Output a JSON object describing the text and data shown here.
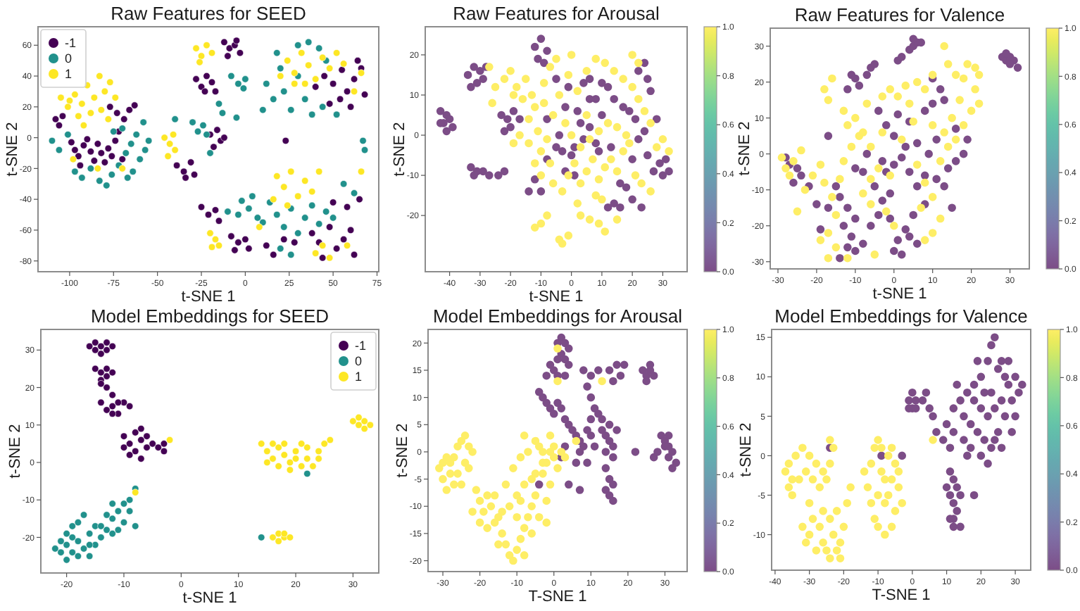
{
  "chart_data": [
    {
      "type": "scatter",
      "title": "Raw Features for SEED",
      "xlabel": "t-SNE 1",
      "ylabel": "t-SNE 2",
      "xlim": [
        -118,
        76
      ],
      "ylim": [
        -87,
        72
      ],
      "xticks": [
        -100,
        -75,
        -50,
        -25,
        0,
        25,
        50,
        75
      ],
      "yticks": [
        -80,
        -60,
        -40,
        -20,
        0,
        20,
        40,
        60
      ],
      "legend": "top left",
      "marker": "circle",
      "series": [
        {
          "name": "-1",
          "color": "#440154",
          "x": [
            -108,
            -106,
            -104,
            -99,
            -97,
            -95,
            -92,
            -90,
            -88,
            -86,
            -84,
            -82,
            -80,
            -78,
            -76,
            -74,
            -72,
            -70,
            -77,
            -73,
            -69,
            -66,
            -63,
            -94,
            -12,
            -9,
            -6,
            -3,
            -10,
            -5,
            -28,
            -25,
            -22,
            -19,
            -17,
            -23,
            -20,
            -16,
            -14,
            -18,
            -12,
            -39,
            -35,
            -31,
            -29,
            -34,
            -25,
            -21,
            -17,
            -15,
            -8,
            -4,
            0,
            2,
            -6,
            45,
            50,
            55,
            58,
            62,
            66,
            68,
            48,
            54,
            60,
            40,
            64,
            38,
            42,
            48,
            52,
            56,
            60,
            62,
            44,
            12,
            16,
            22,
            58,
            65,
            50,
            28,
            23
          ],
          "values": [
            12,
            8,
            14,
            -3,
            -8,
            -12,
            -5,
            -1,
            -9,
            -15,
            -4,
            -10,
            -16,
            -7,
            -12,
            -2,
            4,
            -14,
            20,
            16,
            12,
            18,
            21,
            -18,
            62,
            58,
            60,
            55,
            53,
            63,
            38,
            33,
            40,
            36,
            30,
            30,
            2,
            5,
            -2,
            -6,
            0,
            -18,
            -22,
            -16,
            -24,
            -26,
            -45,
            -50,
            -47,
            -54,
            -64,
            -68,
            -66,
            -72,
            -73,
            40,
            35,
            44,
            30,
            38,
            45,
            28,
            22,
            25,
            20,
            33,
            50,
            -62,
            -68,
            -58,
            -72,
            -66,
            -60,
            -76,
            -78,
            -70,
            -76,
            -66,
            -45,
            -40,
            -42,
            -68,
            -2
          ]
        },
        {
          "name": "0",
          "color": "#21918c",
          "x": [
            -110,
            -106,
            -101,
            -97,
            -93,
            -88,
            -83,
            -79,
            -76,
            -72,
            -68,
            -65,
            -62,
            -60,
            -57,
            -55,
            -64,
            -70,
            -67,
            -58,
            -75,
            -30,
            -27,
            -24,
            -22,
            -15,
            -13,
            -5,
            -8,
            -4,
            0,
            -1,
            -40,
            -20,
            -10,
            -4,
            2,
            7,
            -2,
            4,
            12,
            16,
            20,
            22,
            26,
            30,
            34,
            38,
            30,
            36,
            42,
            46,
            44,
            18,
            52,
            10,
            14,
            18,
            22,
            26,
            30,
            34,
            38,
            42,
            46,
            20,
            26,
            56,
            62,
            50,
            10,
            67,
            68
          ],
          "values": [
            -2,
            -8,
            2,
            -22,
            -26,
            -20,
            -28,
            -31,
            -24,
            -18,
            -10,
            -4,
            2,
            -14,
            -8,
            -2,
            -22,
            6,
            -26,
            10,
            4,
            10,
            4,
            8,
            2,
            22,
            16,
            13,
            40,
            35,
            38,
            32,
            12,
            -10,
            -48,
            -50,
            -46,
            -52,
            -41,
            -38,
            35,
            25,
            45,
            30,
            18,
            40,
            25,
            15,
            60,
            62,
            58,
            50,
            20,
            55,
            15,
            18,
            -42,
            -50,
            -58,
            -46,
            -62,
            -52,
            -44,
            -56,
            -48,
            -72,
            -76,
            -30,
            -36,
            -52,
            -55,
            -2,
            -8
          ]
        },
        {
          "name": "1",
          "color": "#fde725",
          "x": [
            -105,
            -100,
            -97,
            -93,
            -90,
            -86,
            -83,
            -80,
            -77,
            -74,
            -88,
            -95,
            -82,
            -101,
            -78,
            -92,
            -84,
            -70,
            -98,
            -28,
            -25,
            -22,
            -19,
            -26,
            -46,
            -43,
            -40,
            -44,
            -41,
            -20,
            -17,
            -15,
            -19,
            24,
            28,
            32,
            36,
            40,
            44,
            48,
            52,
            28,
            56,
            34,
            62,
            66,
            20,
            18,
            22,
            26,
            30,
            34,
            38,
            42,
            16,
            24,
            44,
            48,
            40,
            66,
            8,
            58
          ],
          "values": [
            26,
            24,
            28,
            22,
            34,
            26,
            40,
            30,
            36,
            26,
            16,
            14,
            18,
            20,
            12,
            8,
            -20,
            -20,
            -14,
            58,
            53,
            60,
            55,
            49,
            0,
            -4,
            -8,
            -12,
            2,
            -62,
            -66,
            -70,
            -71,
            50,
            42,
            55,
            47,
            38,
            52,
            45,
            55,
            35,
            48,
            35,
            30,
            42,
            40,
            -25,
            -32,
            -22,
            -38,
            -28,
            -35,
            -22,
            -40,
            -44,
            -70,
            -78,
            -75,
            -22,
            -58,
            -70
          ]
        }
      ]
    },
    {
      "type": "scatter",
      "title": "Raw Features for Arousal",
      "xlabel": "t-SNE 1",
      "ylabel": "t-SNE 2",
      "xlim": [
        -48,
        38
      ],
      "ylim": [
        -34,
        27
      ],
      "xticks": [
        -40,
        -30,
        -20,
        -10,
        0,
        10,
        20,
        30
      ],
      "yticks": [
        -20,
        -10,
        0,
        10,
        20
      ],
      "clim": [
        0,
        1
      ],
      "cticks": [
        {
          "value": 0,
          "label": "0.0"
        },
        {
          "value": 0.2,
          "label": "0.2"
        },
        {
          "value": 0.4,
          "label": "0.4"
        },
        {
          "value": 0.6,
          "label": "0.6"
        },
        {
          "value": 0.8,
          "label": "0.8"
        },
        {
          "value": 1,
          "label": "1.0"
        }
      ],
      "marker": "circle",
      "x": [
        -43,
        -41,
        -42,
        -40,
        -39,
        -41,
        -43,
        -34,
        -32,
        -30,
        -31,
        -33,
        -29,
        -28,
        -33,
        -31,
        -29,
        -27,
        -24,
        -22,
        -32,
        -23,
        -21,
        -19,
        -17,
        -20,
        -22,
        -12,
        -10,
        -8,
        -11,
        -9,
        -5,
        -2,
        2,
        4,
        6,
        0,
        -5,
        -8,
        -12,
        -14,
        -10,
        -4,
        3,
        8,
        10,
        12,
        14,
        6,
        -1,
        1,
        10,
        13,
        16,
        18,
        14,
        12,
        16,
        20,
        19,
        21,
        24,
        22,
        25,
        27,
        29,
        31,
        32,
        30,
        24,
        22,
        25,
        26,
        28,
        20,
        8,
        -2,
        17,
        4,
        6,
        -8,
        9,
        -3,
        1,
        23,
        -27,
        -25,
        -26,
        -22,
        -19,
        -18,
        -16,
        -20,
        -15,
        -13,
        -12,
        -17,
        -19,
        -14,
        -10,
        -7,
        -12,
        -10,
        -6,
        -3,
        -1,
        1,
        3,
        5,
        7,
        9,
        11,
        13,
        15,
        17,
        19,
        21,
        23,
        26,
        28,
        30,
        32,
        26,
        24,
        22,
        20,
        17,
        14,
        11,
        8,
        5,
        2,
        -1,
        -4,
        -6,
        -9,
        -2,
        0,
        3,
        6,
        9,
        12,
        15,
        18,
        5,
        -8,
        -14,
        -11,
        0,
        8,
        10,
        2,
        6,
        9,
        11,
        -10,
        -12,
        -8,
        -3,
        -1,
        -4,
        3,
        15,
        20,
        22,
        -7,
        -9,
        -5
      ],
      "values": [
        6,
        5,
        3,
        4,
        2,
        1,
        3,
        15,
        17,
        16,
        13,
        12,
        14,
        17,
        -8,
        -9,
        -9,
        -10,
        -10,
        -9,
        -10,
        5,
        4,
        6,
        4,
        2,
        1,
        22,
        24,
        21,
        19,
        18,
        14,
        7,
        6,
        -1,
        2,
        -5,
        -3,
        -6,
        -11,
        -14,
        -14,
        0,
        3,
        9,
        13,
        12,
        9,
        14,
        12,
        -3,
        5,
        -3,
        -12,
        -13,
        -17,
        -18,
        -18,
        -16,
        6,
        4,
        1,
        -1,
        -5,
        -9,
        -7,
        -6,
        -9,
        -10,
        18,
        16,
        14,
        11,
        4,
        -6,
        -2,
        -9,
        7,
        13,
        9,
        4,
        -4,
        -4,
        -10,
        -18,
        17,
        12,
        8,
        14,
        10,
        12,
        9,
        16,
        14,
        10,
        7,
        0,
        -2,
        -2,
        -4,
        -7,
        -7,
        -10,
        -12,
        -14,
        -10,
        -7,
        -12,
        -9,
        -6,
        -11,
        -8,
        -6,
        -9,
        -4,
        -2,
        -10,
        -12,
        -14,
        -3,
        -1,
        -4,
        3,
        6,
        9,
        12,
        14,
        16,
        18,
        19,
        16,
        11,
        15,
        10,
        5,
        8,
        3,
        0,
        -3,
        -1,
        1,
        3,
        2,
        0,
        5,
        -1,
        4,
        1,
        20,
        -15,
        -16,
        -17,
        -21,
        -22,
        -24,
        -22,
        -23,
        -20,
        -27,
        -25,
        -26,
        -20,
        -21,
        20,
        18,
        17,
        13,
        19
      ],
      "cvalues": [
        0,
        0,
        0,
        0,
        0,
        0,
        0,
        0,
        0,
        0,
        0,
        0,
        0,
        0,
        0,
        0,
        0,
        0,
        0,
        0,
        0,
        0,
        0,
        0,
        0,
        0,
        0,
        0,
        0,
        0,
        0,
        0,
        0,
        0,
        0,
        0,
        0,
        0,
        0,
        0,
        0,
        0,
        0,
        0,
        0,
        0,
        0,
        0,
        0,
        0,
        0,
        0,
        0,
        0,
        0,
        0,
        0,
        0,
        0,
        0,
        0,
        0,
        0,
        0,
        0,
        0,
        0,
        0,
        0,
        0,
        0,
        0,
        0,
        0,
        0,
        0,
        0,
        0,
        0,
        0,
        0,
        0,
        0,
        0,
        0,
        0,
        1,
        1,
        1,
        1,
        1,
        1,
        1,
        1,
        1,
        1,
        1,
        1,
        1,
        1,
        1,
        1,
        1,
        1,
        1,
        1,
        1,
        1,
        1,
        1,
        1,
        1,
        1,
        1,
        1,
        1,
        1,
        1,
        1,
        1,
        1,
        1,
        1,
        1,
        1,
        1,
        1,
        1,
        1,
        1,
        1,
        1,
        1,
        1,
        1,
        1,
        1,
        1,
        1,
        1,
        1,
        1,
        1,
        1,
        1,
        1,
        1,
        1,
        1,
        1,
        1,
        1,
        1,
        1,
        1,
        1,
        1,
        1,
        1,
        1,
        1,
        1,
        1,
        1,
        1,
        1,
        1,
        1,
        1
      ]
    },
    {
      "type": "scatter",
      "title": "Raw Features for Valence",
      "xlabel": "t-SNE 1",
      "ylabel": "t-SNE 2",
      "xlim": [
        -32,
        35
      ],
      "ylim": [
        -32,
        35
      ],
      "xticks": [
        -30,
        -20,
        -10,
        0,
        10,
        20,
        30
      ],
      "yticks": [
        -30,
        -20,
        -10,
        0,
        10,
        20,
        30
      ],
      "clim": [
        0,
        1
      ],
      "cticks": [
        {
          "value": 0,
          "label": "0.0"
        },
        {
          "value": 0.2,
          "label": "0.2"
        },
        {
          "value": 0.4,
          "label": "0.4"
        },
        {
          "value": 0.6,
          "label": "0.6"
        },
        {
          "value": 0.8,
          "label": "0.8"
        },
        {
          "value": 1,
          "label": "1.0"
        }
      ],
      "marker": "circle",
      "x": [
        28,
        29,
        30,
        31,
        30,
        29,
        32,
        1,
        2,
        4,
        5,
        6,
        7,
        5,
        -11,
        -10,
        -12,
        -9,
        -7,
        -6,
        -5,
        -28,
        -27,
        -25,
        -24,
        -26,
        -17,
        -15,
        -14,
        -12,
        -10,
        -13,
        -11,
        -12,
        -10,
        -14,
        -8,
        -6,
        -4,
        -3,
        -1,
        -5,
        -2,
        0,
        -8,
        -3,
        2,
        4,
        6,
        8,
        5,
        3,
        1,
        0,
        2,
        4,
        -1,
        6,
        1,
        4,
        -4,
        -2,
        0,
        3,
        6,
        8,
        10,
        12,
        13,
        11,
        9,
        11,
        13,
        15,
        14,
        16,
        18,
        16,
        19,
        10,
        8,
        -7,
        -10,
        -17,
        -19,
        -20,
        -22,
        -29,
        -28,
        -26,
        -24,
        -27,
        -25,
        -23,
        -21,
        -19,
        -18,
        -16,
        -14,
        -13,
        -11,
        -9,
        -12,
        -10,
        -8,
        -6,
        -4,
        -6,
        -8,
        -6,
        -2,
        0,
        -15,
        -17,
        -15,
        -17,
        -19,
        -12,
        -5,
        -7,
        -3,
        -1,
        1,
        3,
        -18,
        -16,
        -17,
        6,
        8,
        10,
        12,
        10,
        8,
        7,
        12,
        14,
        16,
        18,
        20,
        22,
        21,
        18,
        16,
        14,
        19,
        21,
        22,
        17,
        15,
        13,
        10,
        8,
        10,
        6,
        4,
        2,
        -1,
        5,
        -13,
        -3,
        13
      ],
      "values": [
        27,
        26,
        27,
        26,
        25,
        28,
        24,
        26,
        27,
        29,
        30,
        31,
        31,
        32,
        22,
        21,
        18,
        19,
        22,
        24,
        25,
        -1,
        -3,
        -4,
        -6,
        -8,
        5,
        -9,
        -12,
        -15,
        -18,
        -20,
        -23,
        -26,
        -27,
        -29,
        -25,
        -20,
        -17,
        -13,
        -11,
        -9,
        -5,
        -3,
        -5,
        -2,
        -1,
        -5,
        -9,
        -14,
        -17,
        -21,
        -24,
        -27,
        -28,
        -23,
        -18,
        -25,
        11,
        9,
        12,
        8,
        5,
        2,
        3,
        12,
        14,
        18,
        15,
        4,
        0,
        -7,
        -9,
        -15,
        -4,
        -2,
        0,
        7,
        4,
        21,
        -6,
        0,
        -4,
        -15,
        -21,
        -14,
        -9,
        -1,
        -4,
        -2,
        1,
        -6,
        -16,
        -10,
        -6,
        -3,
        -8,
        -12,
        -7,
        -2,
        2,
        5,
        8,
        10,
        6,
        2,
        -4,
        -7,
        -11,
        -14,
        -16,
        -20,
        -17,
        -22,
        -26,
        -29,
        -24,
        -29,
        -28,
        14,
        16,
        18,
        16,
        19,
        18,
        21,
        15,
        -3,
        -8,
        -12,
        -18,
        -22,
        -24,
        -15,
        -2,
        2,
        4,
        8,
        12,
        14,
        18,
        21,
        22,
        25,
        25,
        24,
        22,
        15,
        10,
        6,
        8,
        18,
        22,
        20,
        14,
        4,
        -6,
        9,
        12,
        6,
        30
      ],
      "cvalues": [
        0,
        0,
        0,
        0,
        0,
        0,
        0,
        0,
        0,
        0,
        0,
        0,
        0,
        0,
        0,
        0,
        0,
        0,
        0,
        0,
        0,
        0,
        0,
        0,
        0,
        0,
        0,
        0,
        0,
        0,
        0,
        0,
        0,
        0,
        0,
        0,
        0,
        0,
        0,
        0,
        0,
        0,
        0,
        0,
        0,
        0,
        0,
        0,
        0,
        0,
        0,
        0,
        0,
        0,
        0,
        0,
        0,
        0,
        0,
        0,
        0,
        0,
        0,
        0,
        0,
        0,
        0,
        0,
        0,
        0,
        0,
        0,
        0,
        0,
        0,
        0,
        0,
        0,
        0,
        0,
        0,
        0,
        0,
        0,
        0,
        0,
        0,
        1,
        1,
        1,
        1,
        1,
        1,
        1,
        1,
        1,
        1,
        1,
        1,
        1,
        1,
        1,
        1,
        1,
        1,
        1,
        1,
        1,
        1,
        1,
        1,
        1,
        1,
        1,
        1,
        1,
        1,
        1,
        1,
        1,
        1,
        1,
        1,
        1,
        1,
        1,
        1,
        1,
        1,
        1,
        1,
        1,
        1,
        1,
        1,
        1,
        1,
        1,
        1,
        1,
        1,
        1,
        1,
        1,
        1,
        1,
        1,
        1,
        1,
        1,
        1,
        1,
        1,
        1,
        1,
        1,
        1,
        1,
        1,
        1,
        1
      ]
    },
    {
      "type": "scatter",
      "title": "Model Embeddings for SEED",
      "xlabel": "t-SNE 1",
      "ylabel": "t-SNE 2",
      "xlim": [
        -24.5,
        34.5
      ],
      "ylim": [
        -29.5,
        35.5
      ],
      "xticks": [
        -20,
        -10,
        0,
        10,
        20,
        30
      ],
      "yticks": [
        -20,
        -10,
        0,
        10,
        20,
        30
      ],
      "legend": "top right",
      "marker": "circle",
      "series": [
        {
          "name": "-1",
          "color": "#440154",
          "x": [
            -16,
            -15,
            -14,
            -13,
            -12,
            -14,
            -15,
            -13,
            -15,
            -14,
            -13,
            -14,
            -13,
            -12,
            -14,
            -13,
            -12,
            -14,
            -13,
            -12,
            -11,
            -10,
            -9,
            -12,
            -11,
            -10,
            -9,
            -8,
            -7,
            -6,
            -8,
            -9,
            -7,
            -6,
            -5,
            -10,
            -7,
            -3,
            -4,
            -3
          ],
          "values": [
            31,
            32,
            31,
            30,
            31,
            29,
            30,
            32,
            25,
            24,
            25,
            22,
            20,
            18,
            21,
            23,
            24,
            16,
            14,
            15,
            13,
            16,
            15,
            13,
            16,
            7,
            5,
            8,
            6,
            4,
            3,
            2,
            1,
            7,
            5,
            4,
            9,
            5,
            4,
            3
          ]
        },
        {
          "name": "0",
          "color": "#21918c",
          "x": [
            -22,
            -21,
            -20,
            -19,
            -21,
            -20,
            -19,
            -18,
            -17,
            -16,
            -15,
            -14,
            -13,
            -12,
            -11,
            -10,
            -9,
            -10,
            -12,
            -8,
            -17,
            -18,
            -15,
            -19,
            -13,
            -11,
            -16,
            -8,
            14,
            22,
            -20,
            -18,
            -16,
            -14,
            -12,
            -9
          ],
          "values": [
            -23,
            -24,
            -26,
            -24,
            -21,
            -19,
            -17,
            -21,
            -23,
            -19,
            -17,
            -20,
            -18,
            -15,
            -13,
            -11,
            -13,
            -16,
            -19,
            -17,
            -14,
            -16,
            -22,
            -20,
            -14,
            -18,
            -25,
            -7,
            -20,
            -3,
            -22,
            -25,
            -22,
            -17,
            -11,
            -10
          ]
        },
        {
          "name": "1",
          "color": "#fde725",
          "x": [
            -2,
            -8,
            14,
            15,
            16,
            17,
            18,
            19,
            20,
            21,
            22,
            23,
            24,
            25,
            17,
            19,
            21,
            16,
            18,
            20,
            22,
            15,
            24,
            26,
            30,
            31,
            32,
            33,
            31,
            32,
            16,
            17,
            18,
            17,
            18,
            19
          ],
          "values": [
            6,
            -8,
            5,
            3,
            1,
            4,
            2,
            0,
            3,
            5,
            1,
            -1,
            3,
            5,
            -1,
            -2,
            -1,
            5,
            5,
            1,
            4,
            0,
            1,
            6,
            11,
            10,
            11,
            10,
            12,
            9,
            -20,
            -19,
            -20,
            -21,
            -19,
            -20
          ]
        }
      ]
    },
    {
      "type": "scatter",
      "title": "Model Embeddings for Arousal",
      "xlabel": "T-SNE 1",
      "ylabel": "t-SNE 2",
      "xlim": [
        -34,
        36
      ],
      "ylim": [
        -22,
        22.5
      ],
      "xticks": [
        -30,
        -20,
        -10,
        0,
        10,
        20,
        30
      ],
      "yticks": [
        -20,
        -15,
        -10,
        -5,
        0,
        5,
        10,
        15,
        20
      ],
      "clim": [
        0,
        1
      ],
      "cticks": [
        {
          "value": 0,
          "label": "0.0"
        },
        {
          "value": 0.2,
          "label": "0.2"
        },
        {
          "value": 0.4,
          "label": "0.4"
        },
        {
          "value": 0.6,
          "label": "0.6"
        },
        {
          "value": 0.8,
          "label": "0.8"
        },
        {
          "value": 1,
          "label": "1.0"
        }
      ],
      "marker": "circle",
      "x": [
        1,
        2,
        3,
        4,
        2,
        3,
        1,
        4,
        -1,
        0,
        -2,
        1,
        3,
        -3,
        -2,
        -1,
        0,
        1,
        -4,
        2,
        3,
        4,
        5,
        6,
        7,
        8,
        8,
        10,
        12,
        9,
        10,
        11,
        12,
        13,
        10,
        13,
        14,
        15,
        16,
        14,
        17,
        15,
        16,
        14,
        15,
        16,
        14,
        15,
        16,
        15,
        17,
        18,
        16,
        19,
        7,
        9,
        6,
        7,
        4,
        24,
        25,
        26,
        27,
        25,
        26,
        29,
        30,
        31,
        30,
        27,
        28,
        22,
        31,
        32,
        33,
        32,
        31,
        3,
        2,
        -4,
        10,
        11,
        9,
        1,
        1,
        13,
        6,
        -31,
        -30,
        -29,
        -28,
        -27,
        -26,
        -25,
        -24,
        -23,
        -24,
        -26,
        -22,
        -25,
        -28,
        -23,
        -27,
        -29,
        -30,
        -21,
        -20,
        -19,
        -18,
        -17,
        -16,
        -15,
        -14,
        -13,
        -12,
        -11,
        -10,
        -9,
        -8,
        -7,
        -6,
        -5,
        -3,
        -2,
        -1,
        0,
        2,
        3,
        1,
        -1,
        -2,
        -4,
        -3,
        -6,
        -8,
        -10,
        -12,
        -14,
        -16,
        -18,
        -20,
        -22,
        -11,
        -9,
        -7,
        -5,
        -8,
        -3,
        -1,
        -6,
        -8,
        -13,
        -10,
        -15,
        -5,
        -2,
        -9,
        0,
        -4
      ],
      "values": [
        20,
        21,
        20,
        19,
        18,
        17,
        17,
        16,
        16,
        15,
        14,
        14,
        14,
        10,
        9,
        8,
        7,
        9,
        11,
        8,
        6,
        5,
        4,
        3,
        2,
        1,
        15,
        14,
        15,
        12,
        10,
        8,
        7,
        6,
        6,
        4,
        3,
        2,
        1,
        0,
        4,
        5,
        -1,
        -3,
        -5,
        -6,
        -7,
        -8,
        -9,
        15,
        16,
        14,
        13,
        16,
        0,
        -2,
        -2,
        -7,
        -6,
        15,
        14,
        15,
        14,
        13,
        16,
        3,
        2,
        3,
        1,
        -1,
        0,
        0,
        -1,
        0,
        -2,
        -3,
        1,
        1,
        -1,
        -6,
        3,
        1,
        4,
        19,
        13,
        13,
        2,
        -3,
        -5,
        -7,
        -4,
        -1,
        1,
        2,
        3,
        1,
        -2,
        -4,
        0,
        -6,
        -2,
        -3,
        -6,
        -1,
        -2,
        -7,
        -9,
        -11,
        -14,
        -10,
        -8,
        -12,
        -15,
        -17,
        -19,
        -20,
        -18,
        -16,
        -14,
        -12,
        -10,
        -8,
        -4,
        -2,
        0,
        1,
        0,
        -1,
        -3,
        -6,
        -9,
        -12,
        -2,
        -5,
        -6,
        -8,
        -10,
        -11,
        -13,
        -8,
        -13,
        -11,
        -3,
        -1,
        0,
        2,
        3,
        0,
        3,
        -15,
        -19,
        -6,
        -12,
        -17,
        -4,
        -13,
        -9,
        -1,
        1
      ],
      "cvalues": [
        0,
        0,
        0,
        0,
        0,
        0,
        0,
        0,
        0,
        0,
        0,
        0,
        0,
        0,
        0,
        0,
        0,
        0,
        0,
        0,
        0,
        0,
        0,
        0,
        0,
        0,
        0,
        0,
        0,
        0,
        0,
        0,
        0,
        0,
        0,
        0,
        0,
        0,
        0,
        0,
        0,
        0,
        0,
        0,
        0,
        0,
        0,
        0,
        0,
        0,
        0,
        0,
        0,
        0,
        0,
        0,
        0,
        0,
        0,
        0,
        0,
        0,
        0,
        0,
        0,
        0,
        0,
        0,
        0,
        0,
        0,
        0,
        0,
        0,
        0,
        0,
        0,
        0,
        0,
        0,
        0,
        0,
        0,
        1,
        1,
        1,
        1,
        1,
        1,
        1,
        1,
        1,
        1,
        1,
        1,
        1,
        1,
        1,
        1,
        1,
        1,
        1,
        1,
        1,
        1,
        1,
        1,
        1,
        1,
        1,
        1,
        1,
        1,
        1,
        1,
        1,
        1,
        1,
        1,
        1,
        1,
        1,
        1,
        1,
        1,
        1,
        1,
        1,
        1,
        1,
        1,
        1,
        1,
        1,
        1,
        1,
        1,
        1,
        1,
        1,
        1,
        1,
        1,
        1,
        1,
        1,
        1,
        1,
        1,
        1,
        1,
        1,
        1,
        1,
        1,
        1,
        1,
        1,
        1
      ]
    },
    {
      "type": "scatter",
      "title": "Model Embeddings for Valence",
      "xlabel": "T-SNE 1",
      "ylabel": "t-SNE 2",
      "xlim": [
        -41,
        34.5
      ],
      "ylim": [
        -14.5,
        16
      ],
      "xticks": [
        -40,
        -30,
        -20,
        -10,
        0,
        10,
        20,
        30
      ],
      "yticks": [
        -10,
        -5,
        0,
        5,
        10,
        15
      ],
      "clim": [
        0,
        1
      ],
      "cticks": [
        {
          "value": 0,
          "label": "0.0"
        },
        {
          "value": 0.2,
          "label": "0.2"
        },
        {
          "value": 0.4,
          "label": "0.4"
        },
        {
          "value": 0.6,
          "label": "0.6"
        },
        {
          "value": 0.8,
          "label": "0.8"
        },
        {
          "value": 1,
          "label": "1.0"
        }
      ],
      "marker": "circle",
      "x": [
        -1,
        0,
        1,
        0,
        -1,
        1,
        3,
        4,
        5,
        6,
        7,
        9,
        10,
        11,
        12,
        11,
        12,
        13,
        11,
        12,
        13,
        12,
        14,
        12,
        10,
        14,
        11,
        23,
        24,
        22,
        25,
        20,
        18,
        16,
        14,
        12,
        15,
        17,
        19,
        21,
        23,
        25,
        27,
        29,
        31,
        32,
        30,
        28,
        26,
        24,
        22,
        20,
        18,
        21,
        27,
        29,
        20,
        22,
        24,
        26,
        17,
        15,
        18,
        16,
        30,
        28,
        13,
        26,
        23,
        19,
        -24,
        -9,
        -3,
        -37,
        -36,
        -35,
        -36,
        -34,
        -32,
        -30,
        -28,
        -26,
        -24,
        -23,
        -24,
        -25,
        -27,
        -29,
        -31,
        -33,
        -35,
        -30,
        -32,
        -31,
        -30,
        -29,
        -27,
        -26,
        -25,
        -24,
        -23,
        -22,
        -21,
        -20,
        -22,
        -24,
        -26,
        -28,
        -21,
        -19,
        -18,
        -14,
        -13,
        -12,
        -11,
        -10,
        -9,
        -8,
        -7,
        -6,
        -5,
        -4,
        -3,
        -8,
        -10,
        -12,
        -11,
        -10,
        -8,
        -6,
        -5,
        -7,
        -9,
        -4,
        -6,
        6
      ],
      "values": [
        7,
        6,
        7,
        8,
        6,
        6,
        7,
        8,
        6,
        5,
        3,
        2,
        4,
        1,
        3,
        -2,
        -3,
        -4,
        -5,
        -6,
        -7,
        -8,
        -9,
        -9,
        -4,
        -5,
        -8,
        14,
        15,
        12,
        11,
        10,
        9,
        8,
        7,
        6,
        5,
        4,
        3,
        2,
        1,
        3,
        5,
        7,
        8,
        9,
        10,
        9,
        7,
        6,
        5,
        6,
        7,
        8,
        10,
        3,
        0,
        -1,
        2,
        1,
        1,
        2,
        -5,
        0,
        5,
        12,
        9,
        12,
        8,
        12,
        1,
        0,
        0,
        -2,
        -4,
        -5,
        -1,
        0,
        1,
        0,
        -1,
        -2,
        -1,
        1,
        2,
        -3,
        -4,
        -3,
        -2,
        -3,
        -3,
        -6,
        -9,
        -11,
        -10,
        -8,
        -9,
        -11,
        -12,
        -13,
        -10,
        -12,
        -11,
        -9,
        -7,
        -8,
        -7,
        -12,
        -13,
        -6,
        -4,
        -2,
        -4,
        -1,
        1,
        2,
        -2,
        -3,
        -5,
        -3,
        -1,
        -4,
        -6,
        -6,
        -5,
        -6,
        -8,
        -9,
        -10,
        -9,
        -7,
        0,
        1,
        -2,
        1,
        2
      ],
      "cvalues": [
        0,
        0,
        0,
        0,
        0,
        0,
        0,
        0,
        0,
        0,
        0,
        0,
        0,
        0,
        0,
        0,
        0,
        0,
        0,
        0,
        0,
        0,
        0,
        0,
        0,
        0,
        0,
        0,
        0,
        0,
        0,
        0,
        0,
        0,
        0,
        0,
        0,
        0,
        0,
        0,
        0,
        0,
        0,
        0,
        0,
        0,
        0,
        0,
        0,
        0,
        0,
        0,
        0,
        0,
        0,
        0,
        0,
        0,
        0,
        0,
        0,
        0,
        0,
        0,
        0,
        0,
        0,
        0,
        0,
        0,
        0,
        0,
        0,
        1,
        1,
        1,
        1,
        1,
        1,
        1,
        1,
        1,
        1,
        1,
        1,
        1,
        1,
        1,
        1,
        1,
        1,
        1,
        1,
        1,
        1,
        1,
        1,
        1,
        1,
        1,
        1,
        1,
        1,
        1,
        1,
        1,
        1,
        1,
        1,
        1,
        1,
        1,
        1,
        1,
        1,
        1,
        1,
        1,
        1,
        1,
        1,
        1,
        1,
        1,
        1,
        1,
        1,
        1,
        1,
        1,
        1,
        1,
        1,
        1,
        1,
        1
      ]
    }
  ]
}
